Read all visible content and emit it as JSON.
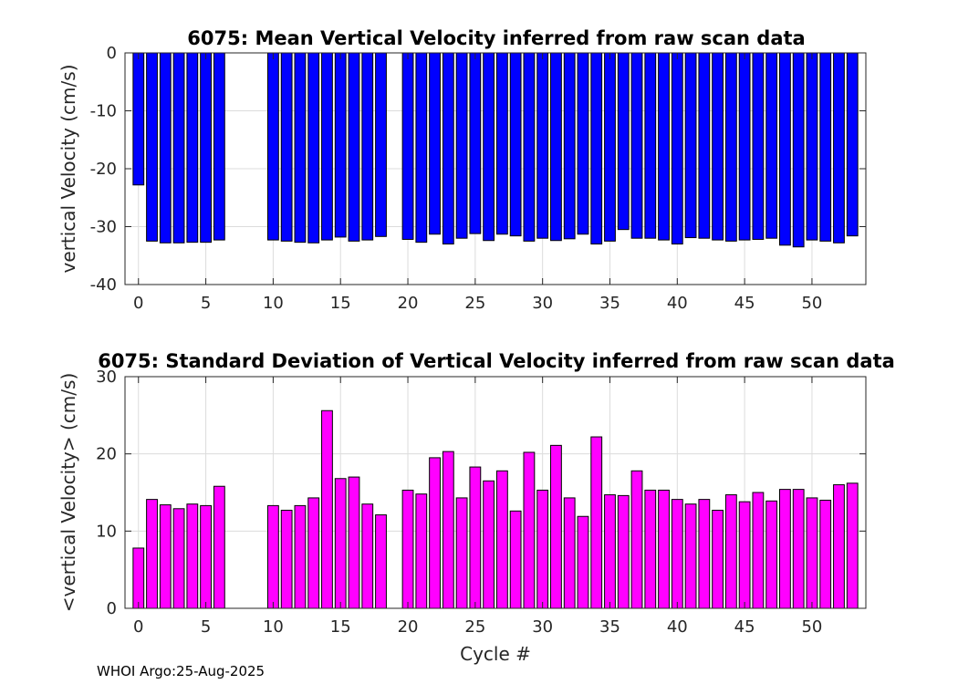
{
  "chart_data": [
    {
      "type": "bar",
      "title": "6075: Mean Vertical Velocity inferred from raw scan data",
      "xlabel": "",
      "ylabel": "vertical Velocity (cm/s)",
      "xlim": [
        -1,
        54
      ],
      "ylim": [
        -40,
        0
      ],
      "xticks": [
        "0",
        "5",
        "10",
        "15",
        "20",
        "25",
        "30",
        "35",
        "40",
        "45",
        "50"
      ],
      "yticks": [
        "0",
        "-10",
        "-20",
        "-30",
        "-40"
      ],
      "grid": true,
      "color": "#0000ff",
      "x": [
        0,
        1,
        2,
        3,
        4,
        5,
        6,
        10,
        11,
        12,
        13,
        14,
        15,
        16,
        17,
        18,
        20,
        21,
        22,
        23,
        24,
        25,
        26,
        27,
        28,
        29,
        30,
        31,
        32,
        33,
        34,
        35,
        36,
        37,
        38,
        39,
        40,
        41,
        42,
        43,
        44,
        45,
        46,
        47,
        48,
        49,
        50,
        51,
        52,
        53
      ],
      "values": [
        -22.8,
        -32.5,
        -32.8,
        -32.8,
        -32.7,
        -32.7,
        -32.3,
        -32.3,
        -32.5,
        -32.7,
        -32.8,
        -32.3,
        -31.8,
        -32.5,
        -32.3,
        -31.7,
        -32.2,
        -32.7,
        -31.3,
        -33.0,
        -32.0,
        -31.2,
        -32.4,
        -31.3,
        -31.6,
        -32.5,
        -32.0,
        -32.4,
        -32.1,
        -31.3,
        -33.0,
        -32.5,
        -30.5,
        -32.0,
        -32.0,
        -32.3,
        -33.0,
        -31.9,
        -32.0,
        -32.3,
        -32.5,
        -32.3,
        -32.2,
        -32.0,
        -33.2,
        -33.5,
        -32.3,
        -32.5,
        -32.8,
        -31.6
      ]
    },
    {
      "type": "bar",
      "title": "6075: Standard Deviation of Vertical Velocity inferred from raw scan data",
      "xlabel": "Cycle #",
      "ylabel": "<vertical Velocity> (cm/s)",
      "xlim": [
        -1,
        54
      ],
      "ylim": [
        0,
        30
      ],
      "xticks": [
        "0",
        "5",
        "10",
        "15",
        "20",
        "25",
        "30",
        "35",
        "40",
        "45",
        "50"
      ],
      "yticks": [
        "0",
        "10",
        "20",
        "30"
      ],
      "grid": true,
      "color": "#ff00ff",
      "x": [
        0,
        1,
        2,
        3,
        4,
        5,
        6,
        10,
        11,
        12,
        13,
        14,
        15,
        16,
        17,
        18,
        20,
        21,
        22,
        23,
        24,
        25,
        26,
        27,
        28,
        29,
        30,
        31,
        32,
        33,
        34,
        35,
        36,
        37,
        38,
        39,
        40,
        41,
        42,
        43,
        44,
        45,
        46,
        47,
        48,
        49,
        50,
        51,
        52,
        53
      ],
      "values": [
        7.8,
        14.1,
        13.4,
        12.9,
        13.5,
        13.3,
        15.8,
        13.3,
        12.7,
        13.3,
        14.3,
        25.6,
        16.8,
        17.0,
        13.5,
        12.1,
        15.3,
        14.8,
        19.5,
        20.3,
        14.3,
        18.3,
        16.5,
        17.8,
        12.6,
        20.2,
        15.3,
        21.1,
        14.3,
        11.9,
        22.2,
        14.7,
        14.6,
        17.8,
        15.3,
        15.3,
        14.1,
        13.5,
        14.1,
        12.7,
        14.7,
        13.8,
        15.0,
        13.9,
        15.4,
        15.4,
        14.3,
        14.0,
        16.0,
        16.2
      ]
    }
  ],
  "footer": "WHOI Argo:25-Aug-2025"
}
